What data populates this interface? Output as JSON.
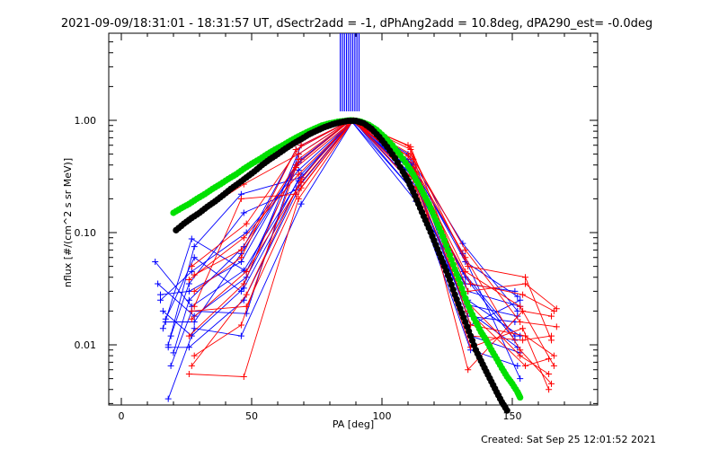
{
  "title": "2021-09-09/18:31:01 - 18:31:57 UT, dSectr2add = -1, dPhAng2add = 10.8deg, dPA290_est= -0.0deg",
  "footer": "Created: Sat Sep 25 12:01:52 2021",
  "chart_data": {
    "type": "line",
    "title": "2021-09-09/18:31:01 - 18:31:57 UT, dSectr2add = -1, dPhAng2add = 10.8deg, dPA290_est= -0.0deg",
    "xlabel": "PA [deg]",
    "ylabel": "nflux [#/(cm^2 s sr MeV)]",
    "xlim": [
      -5,
      185
    ],
    "ylim": [
      0.003,
      5
    ],
    "yscale": "log",
    "xticks": [
      0,
      50,
      100,
      150
    ],
    "xtick_labels": [
      "0",
      "50",
      "100",
      "150"
    ],
    "yticks": [
      0.01,
      0.1,
      1.0
    ],
    "ytick_labels": [
      "0.01",
      "0.10",
      "1.00"
    ],
    "grid": false,
    "colors": {
      "fit_green": "#00e000",
      "fit_black": "#000000",
      "blue": "#0000ff",
      "red": "#ff0000"
    },
    "fit_green": {
      "x": [
        20,
        23,
        26,
        29,
        32,
        35,
        38,
        41,
        44,
        47,
        50,
        53,
        56,
        59,
        62,
        65,
        68,
        71,
        74,
        77,
        80,
        83,
        86,
        88,
        90,
        92,
        95,
        98,
        101,
        104,
        107,
        110,
        112,
        114,
        116,
        118,
        120,
        122,
        124,
        126,
        128,
        130,
        132,
        134,
        136,
        138,
        140,
        142,
        144,
        146,
        148,
        150,
        152,
        153
      ],
      "y": [
        0.15,
        0.165,
        0.18,
        0.2,
        0.22,
        0.245,
        0.27,
        0.3,
        0.33,
        0.37,
        0.41,
        0.45,
        0.5,
        0.55,
        0.6,
        0.66,
        0.72,
        0.78,
        0.84,
        0.9,
        0.94,
        0.97,
        0.99,
        1.0,
        0.99,
        0.97,
        0.91,
        0.82,
        0.71,
        0.6,
        0.49,
        0.39,
        0.33,
        0.27,
        0.22,
        0.18,
        0.14,
        0.11,
        0.085,
        0.063,
        0.047,
        0.035,
        0.026,
        0.02,
        0.016,
        0.013,
        0.011,
        0.009,
        0.0075,
        0.0062,
        0.0052,
        0.0045,
        0.0038,
        0.0034
      ]
    },
    "fit_black": {
      "x": [
        21,
        24,
        27,
        30,
        33,
        36,
        39,
        42,
        45,
        48,
        51,
        54,
        57,
        60,
        63,
        66,
        69,
        72,
        75,
        78,
        81,
        84,
        87,
        90,
        93,
        96,
        99,
        102,
        105,
        108,
        110,
        112,
        114,
        116,
        118,
        120,
        122,
        124,
        126,
        128,
        130,
        132,
        134,
        136,
        138,
        140,
        142,
        144,
        146,
        148
      ],
      "y": [
        0.105,
        0.12,
        0.135,
        0.15,
        0.17,
        0.19,
        0.215,
        0.245,
        0.275,
        0.31,
        0.35,
        0.4,
        0.45,
        0.5,
        0.56,
        0.62,
        0.68,
        0.75,
        0.81,
        0.87,
        0.92,
        0.96,
        0.99,
        0.99,
        0.94,
        0.84,
        0.71,
        0.58,
        0.46,
        0.35,
        0.29,
        0.23,
        0.18,
        0.14,
        0.11,
        0.085,
        0.065,
        0.05,
        0.038,
        0.028,
        0.021,
        0.016,
        0.012,
        0.009,
        0.0072,
        0.0058,
        0.0047,
        0.0038,
        0.0031,
        0.0026
      ]
    },
    "series": [
      {
        "color": "blue",
        "x": [
          13,
          27,
          47,
          68,
          88,
          111,
          132,
          152
        ],
        "y": [
          0.055,
          0.022,
          0.046,
          0.29,
          1.0,
          0.25,
          0.023,
          0.018
        ]
      },
      {
        "color": "blue",
        "x": [
          14,
          28,
          48,
          69,
          89,
          112,
          133,
          153
        ],
        "y": [
          0.035,
          0.018,
          0.04,
          0.33,
          1.0,
          0.3,
          0.03,
          0.022
        ]
      },
      {
        "color": "blue",
        "x": [
          15,
          26,
          46,
          67,
          88,
          110,
          131,
          151
        ],
        "y": [
          0.028,
          0.03,
          0.055,
          0.4,
          1.0,
          0.38,
          0.045,
          0.012
        ]
      },
      {
        "color": "blue",
        "x": [
          16,
          27,
          47,
          68,
          89,
          113,
          134,
          153
        ],
        "y": [
          0.02,
          0.012,
          0.032,
          0.26,
          1.0,
          0.22,
          0.012,
          0.0085
        ]
      },
      {
        "color": "blue",
        "x": [
          17,
          28,
          46,
          69,
          88,
          111,
          132,
          152
        ],
        "y": [
          0.016,
          0.016,
          0.065,
          0.45,
          1.0,
          0.42,
          0.055,
          0.027
        ]
      },
      {
        "color": "blue",
        "x": [
          18,
          26,
          47,
          67,
          89,
          112,
          133,
          151
        ],
        "y": [
          0.0095,
          0.0095,
          0.025,
          0.22,
          1.0,
          0.32,
          0.018,
          0.016
        ]
      },
      {
        "color": "blue",
        "x": [
          19,
          27,
          48,
          68,
          88,
          110,
          131,
          153
        ],
        "y": [
          0.0065,
          0.02,
          0.019,
          0.5,
          1.0,
          0.45,
          0.065,
          0.005
        ]
      },
      {
        "color": "blue",
        "x": [
          18,
          28,
          46,
          69,
          89,
          111,
          134,
          152
        ],
        "y": [
          0.0033,
          0.014,
          0.012,
          0.18,
          1.0,
          0.28,
          0.009,
          0.0065
        ]
      },
      {
        "color": "blue",
        "x": [
          20,
          26,
          47,
          67,
          88,
          113,
          132,
          151
        ],
        "y": [
          0.0085,
          0.025,
          0.075,
          0.55,
          1.0,
          0.19,
          0.035,
          0.03
        ]
      },
      {
        "color": "blue",
        "x": [
          15,
          27,
          48,
          68,
          89,
          112,
          133,
          153
        ],
        "y": [
          0.025,
          0.045,
          0.1,
          0.36,
          1.0,
          0.35,
          0.025,
          0.012
        ]
      },
      {
        "color": "blue",
        "x": [
          17,
          28,
          46,
          69,
          88,
          110,
          131,
          152
        ],
        "y": [
          0.017,
          0.06,
          0.03,
          0.6,
          1.0,
          0.5,
          0.08,
          0.02
        ]
      },
      {
        "color": "blue",
        "x": [
          19,
          26,
          47,
          67,
          89,
          111,
          132,
          151
        ],
        "y": [
          0.012,
          0.035,
          0.15,
          0.24,
          1.0,
          0.33,
          0.04,
          0.011
        ]
      },
      {
        "color": "blue",
        "x": [
          16,
          27,
          48,
          68,
          88,
          112,
          134,
          153
        ],
        "y": [
          0.014,
          0.088,
          0.045,
          0.42,
          1.0,
          0.4,
          0.015,
          0.025
        ]
      },
      {
        "color": "blue",
        "x": [
          18,
          28,
          46,
          69,
          89,
          113,
          133,
          152
        ],
        "y": [
          0.01,
          0.075,
          0.22,
          0.31,
          1.0,
          0.26,
          0.02,
          0.0095
        ]
      },
      {
        "color": "red",
        "x": [
          26,
          47,
          68,
          89,
          112,
          133,
          154,
          165
        ],
        "y": [
          0.0055,
          0.0052,
          0.2,
          1.0,
          0.45,
          0.006,
          0.02,
          0.018
        ]
      },
      {
        "color": "red",
        "x": [
          27,
          48,
          69,
          88,
          111,
          134,
          155,
          166
        ],
        "y": [
          0.0065,
          0.028,
          0.3,
          1.0,
          0.55,
          0.015,
          0.012,
          0.008
        ]
      },
      {
        "color": "red",
        "x": [
          28,
          46,
          67,
          89,
          113,
          132,
          153,
          164
        ],
        "y": [
          0.008,
          0.015,
          0.38,
          1.0,
          0.35,
          0.025,
          0.008,
          0.0055
        ]
      },
      {
        "color": "red",
        "x": [
          26,
          47,
          68,
          88,
          110,
          133,
          155,
          165
        ],
        "y": [
          0.012,
          0.035,
          0.45,
          1.0,
          0.6,
          0.05,
          0.04,
          0.011
        ]
      },
      {
        "color": "red",
        "x": [
          27,
          48,
          69,
          89,
          112,
          134,
          154,
          166
        ],
        "y": [
          0.02,
          0.022,
          0.25,
          1.0,
          0.3,
          0.035,
          0.028,
          0.02
        ]
      },
      {
        "color": "red",
        "x": [
          28,
          46,
          67,
          88,
          111,
          132,
          153,
          167
        ],
        "y": [
          0.03,
          0.06,
          0.55,
          1.0,
          0.5,
          0.07,
          0.016,
          0.0145
        ]
      },
      {
        "color": "red",
        "x": [
          26,
          47,
          68,
          89,
          113,
          133,
          155,
          164
        ],
        "y": [
          0.038,
          0.09,
          0.33,
          1.0,
          0.28,
          0.02,
          0.0065,
          0.0075
        ]
      },
      {
        "color": "red",
        "x": [
          27,
          48,
          69,
          88,
          110,
          134,
          154,
          165
        ],
        "y": [
          0.05,
          0.12,
          0.6,
          1.0,
          0.42,
          0.012,
          0.011,
          0.012
        ]
      },
      {
        "color": "red",
        "x": [
          28,
          46,
          67,
          89,
          112,
          132,
          153,
          166
        ],
        "y": [
          0.022,
          0.2,
          0.22,
          1.0,
          0.38,
          0.045,
          0.022,
          0.0065
        ]
      },
      {
        "color": "red",
        "x": [
          26,
          47,
          68,
          88,
          111,
          133,
          155,
          167
        ],
        "y": [
          0.13,
          0.27,
          0.5,
          1.0,
          0.58,
          0.03,
          0.035,
          0.021
        ]
      },
      {
        "color": "red",
        "x": [
          27,
          48,
          69,
          89,
          113,
          134,
          154,
          164
        ],
        "y": [
          0.017,
          0.045,
          0.28,
          1.0,
          0.25,
          0.0095,
          0.014,
          0.004
        ]
      },
      {
        "color": "red",
        "x": [
          28,
          46,
          67,
          88,
          110,
          132,
          153,
          165
        ],
        "y": [
          0.042,
          0.07,
          0.4,
          1.0,
          0.48,
          0.06,
          0.009,
          0.0045
        ]
      }
    ],
    "spikes": {
      "color": "blue",
      "x": [
        84.0,
        84.8,
        85.6,
        86.4,
        87.2,
        88.0,
        88.8,
        89.6,
        90.4,
        91.2
      ]
    }
  }
}
